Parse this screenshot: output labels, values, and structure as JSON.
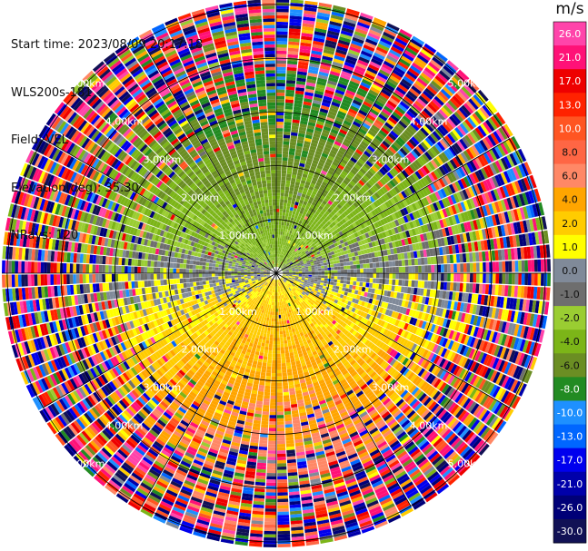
{
  "metadata": {
    "start_time": "Start time: 2023/08/09 20:17:18",
    "instrument": "WLS200s-181",
    "field": "Field: VEL",
    "elevation": "Elevation(deg): 35.30",
    "nrays": "NRays: 120"
  },
  "chart_data": {
    "type": "ppi",
    "field": "VEL",
    "units": "m/s",
    "elevation_deg": 35.3,
    "nrays": 120,
    "range_rings_km": [
      1.0,
      2.0,
      3.0,
      4.0,
      5.0
    ],
    "range_ring_labels": [
      "1.00km",
      "2.00km",
      "3.00km",
      "4.00km",
      "5.00km"
    ],
    "max_range_km": 5.1,
    "colorbar": {
      "unit_label": "m/s",
      "ticks": [
        "26.0",
        "21.0",
        "17.0",
        "13.0",
        "10.0",
        "8.0",
        "6.0",
        "4.0",
        "2.0",
        "1.0",
        "0.0",
        "-1.0",
        "-2.0",
        "-4.0",
        "-6.0",
        "-8.0",
        "-10.0",
        "-13.0",
        "-17.0",
        "-21.0",
        "-26.0",
        "-30.0"
      ],
      "bins": [
        {
          "min": 26,
          "max": 30,
          "color": "#ff44aa"
        },
        {
          "min": 21,
          "max": 26,
          "color": "#ff1177"
        },
        {
          "min": 17,
          "max": 21,
          "color": "#ee0000"
        },
        {
          "min": 13,
          "max": 17,
          "color": "#ff2200"
        },
        {
          "min": 10,
          "max": 13,
          "color": "#ff5522"
        },
        {
          "min": 8,
          "max": 10,
          "color": "#ff6644"
        },
        {
          "min": 6,
          "max": 8,
          "color": "#ff8866"
        },
        {
          "min": 4,
          "max": 6,
          "color": "#ffa500"
        },
        {
          "min": 2,
          "max": 4,
          "color": "#ffcc00"
        },
        {
          "min": 1,
          "max": 2,
          "color": "#ffff00"
        },
        {
          "min": 0,
          "max": 1,
          "color": "#808a99"
        },
        {
          "min": -1,
          "max": 0,
          "color": "#6e6e6e"
        },
        {
          "min": -2,
          "max": -1,
          "color": "#9acd32"
        },
        {
          "min": -4,
          "max": -2,
          "color": "#7cb518"
        },
        {
          "min": -6,
          "max": -4,
          "color": "#6b8e23"
        },
        {
          "min": -8,
          "max": -6,
          "color": "#228b22"
        },
        {
          "min": -10,
          "max": -8,
          "color": "#1e90ff"
        },
        {
          "min": -13,
          "max": -10,
          "color": "#0066ff"
        },
        {
          "min": -17,
          "max": -13,
          "color": "#0000ee"
        },
        {
          "min": -21,
          "max": -17,
          "color": "#0000aa"
        },
        {
          "min": -26,
          "max": -21,
          "color": "#000077"
        },
        {
          "min": -30,
          "max": -26,
          "color": "#111155"
        }
      ]
    }
  }
}
